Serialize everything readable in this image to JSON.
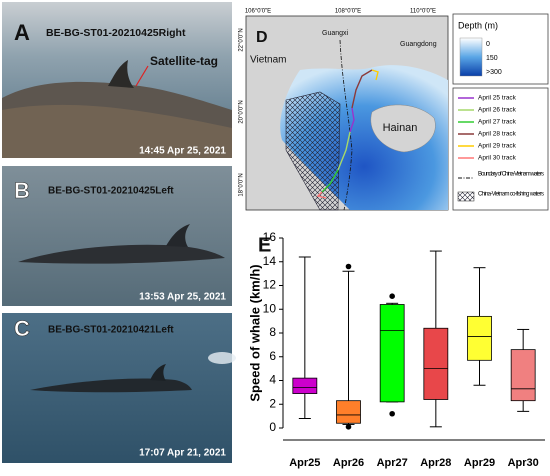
{
  "panels": {
    "a": {
      "label": "A",
      "id": "BE-BG-ST01-20210425Right",
      "annotation": "Satellite-tag",
      "timestamp": "14:45 Apr 25, 2021"
    },
    "b": {
      "label": "B",
      "id": "BE-BG-ST01-20210425Left",
      "timestamp": "13:53 Apr 25, 2021"
    },
    "c": {
      "label": "C",
      "id": "BE-BG-ST01-20210421Left",
      "timestamp": "17:07 Apr 21, 2021"
    }
  },
  "map": {
    "label": "D",
    "lon_labels": [
      "106°0'0\"E",
      "108°0'0\"E",
      "110°0'0\"E"
    ],
    "lat_labels": [
      "22°0'0\"N",
      "20°0'0\"N",
      "18°0'0\"N"
    ],
    "places": [
      "Vietnam",
      "Guangxi",
      "Guangdong",
      "Hainan"
    ],
    "depth_legend": {
      "title": "Depth (m)",
      "levels": [
        "0",
        "150",
        ">300"
      ]
    },
    "track_legend": [
      {
        "name": "April 25 track",
        "color": "#9933cc"
      },
      {
        "name": "April 26 track",
        "color": "#a6d96a"
      },
      {
        "name": "April 27 track",
        "color": "#33cc33"
      },
      {
        "name": "April 28 track",
        "color": "#8b3a3a"
      },
      {
        "name": "April 29 track",
        "color": "#ffcc00"
      },
      {
        "name": "April 30 track",
        "color": "#ff7777"
      }
    ],
    "boundary": "Boundary of China-Vietnam waters",
    "cofishing": "China-Vietnam co-fishing waters"
  },
  "chart_data": {
    "type": "box",
    "title": "E",
    "y_label": "Speed of whale (km/h)",
    "categories": [
      "Apr25",
      "Apr26",
      "Apr27",
      "Apr28",
      "Apr29",
      "Apr30"
    ],
    "min": [
      0.8,
      0.3,
      2.2,
      0.1,
      3.6,
      1.4
    ],
    "q1": [
      2.9,
      0.4,
      2.2,
      2.4,
      5.7,
      2.3
    ],
    "median": [
      3.4,
      1.1,
      8.2,
      5.0,
      7.7,
      3.3
    ],
    "q3": [
      4.2,
      2.3,
      10.4,
      8.4,
      9.4,
      6.6
    ],
    "max": [
      14.4,
      13.2,
      10.5,
      14.9,
      13.5,
      8.3
    ],
    "outliers": [
      [],
      [
        13.6,
        0.1
      ],
      [
        11.1,
        1.2
      ],
      [],
      [],
      []
    ],
    "colors": [
      "#cc00cc",
      "#ff7f2a",
      "#00ff00",
      "#e8474a",
      "#ffff33",
      "#f08080"
    ],
    "ylim": [
      0,
      16
    ],
    "yticks": [
      0,
      2,
      4,
      6,
      8,
      10,
      12,
      14,
      16
    ]
  }
}
